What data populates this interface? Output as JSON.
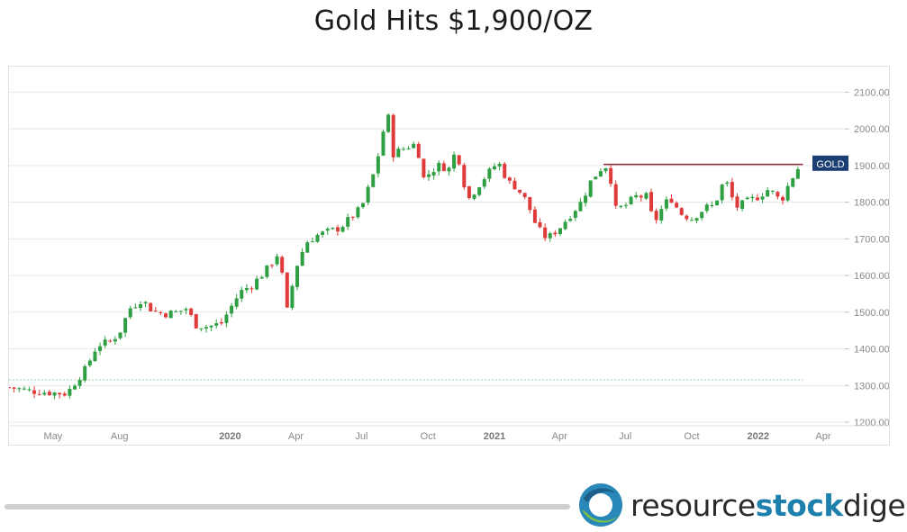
{
  "header": {
    "title": "Gold Hits $1,900/OZ"
  },
  "brand": {
    "name_part1": "resource",
    "name_part2": "stock",
    "name_part3": "digest"
  },
  "colors": {
    "up": "#2ea043",
    "down": "#e03b3b",
    "grid": "#e8e8e8",
    "resistance": "#8b2a3a",
    "label_bg": "#1b3f73"
  },
  "icons": {
    "logo": "circle-swoosh-logo"
  },
  "chart_data": {
    "type": "candlestick",
    "series_label": "GOLD",
    "last_value": 1905,
    "x_range": [
      "2019-03-01",
      "2022-05-01"
    ],
    "ylim": [
      1200,
      2150
    ],
    "yticks": [
      {
        "value": 1200,
        "label": "1200.00"
      },
      {
        "value": 1300,
        "label": "1300.00"
      },
      {
        "value": 1400,
        "label": "1400.00"
      },
      {
        "value": 1500,
        "label": "1500.00"
      },
      {
        "value": 1600,
        "label": "1600.00"
      },
      {
        "value": 1700,
        "label": "1700.00"
      },
      {
        "value": 1800,
        "label": "1800.00"
      },
      {
        "value": 1900,
        "label": "1900.00"
      },
      {
        "value": 2000,
        "label": "2000.00"
      },
      {
        "value": 2100,
        "label": "2100.00"
      }
    ],
    "xticks": [
      {
        "date": "2019-05-01",
        "label": "May",
        "bold": false
      },
      {
        "date": "2019-08-01",
        "label": "Aug",
        "bold": false
      },
      {
        "date": "2020-01-01",
        "label": "2020",
        "bold": true
      },
      {
        "date": "2020-04-01",
        "label": "Apr",
        "bold": false
      },
      {
        "date": "2020-07-01",
        "label": "Jul",
        "bold": false
      },
      {
        "date": "2020-10-01",
        "label": "Oct",
        "bold": false
      },
      {
        "date": "2021-01-01",
        "label": "2021",
        "bold": true
      },
      {
        "date": "2021-04-01",
        "label": "Apr",
        "bold": false
      },
      {
        "date": "2021-07-01",
        "label": "Jul",
        "bold": false
      },
      {
        "date": "2021-10-01",
        "label": "Oct",
        "bold": false
      },
      {
        "date": "2022-01-01",
        "label": "2022",
        "bold": true
      },
      {
        "date": "2022-04-01",
        "label": "Apr",
        "bold": false
      }
    ],
    "resistance_line": {
      "value": 1903,
      "start": "2021-06-01",
      "end": "2022-03-04"
    },
    "baseline_line": {
      "value": 1315,
      "start": "2019-03-01",
      "end": "2022-03-04"
    },
    "close_path": [
      [
        "2019-03-01",
        1295
      ],
      [
        "2019-04-01",
        1285
      ],
      [
        "2019-05-01",
        1280
      ],
      [
        "2019-05-20",
        1278
      ],
      [
        "2019-06-01",
        1310
      ],
      [
        "2019-06-15",
        1345
      ],
      [
        "2019-07-01",
        1410
      ],
      [
        "2019-07-20",
        1420
      ],
      [
        "2019-08-01",
        1445
      ],
      [
        "2019-08-15",
        1510
      ],
      [
        "2019-09-01",
        1535
      ],
      [
        "2019-09-15",
        1505
      ],
      [
        "2019-10-01",
        1495
      ],
      [
        "2019-10-20",
        1500
      ],
      [
        "2019-11-01",
        1510
      ],
      [
        "2019-11-15",
        1465
      ],
      [
        "2019-12-01",
        1460
      ],
      [
        "2019-12-20",
        1470
      ],
      [
        "2020-01-01",
        1510
      ],
      [
        "2020-01-15",
        1555
      ],
      [
        "2020-02-01",
        1575
      ],
      [
        "2020-02-20",
        1615
      ],
      [
        "2020-03-01",
        1640
      ],
      [
        "2020-03-10",
        1670
      ],
      [
        "2020-03-18",
        1485
      ],
      [
        "2020-04-01",
        1620
      ],
      [
        "2020-04-15",
        1690
      ],
      [
        "2020-05-01",
        1710
      ],
      [
        "2020-06-01",
        1730
      ],
      [
        "2020-07-01",
        1785
      ],
      [
        "2020-07-20",
        1890
      ],
      [
        "2020-08-06",
        2050
      ],
      [
        "2020-08-12",
        1930
      ],
      [
        "2020-09-01",
        1950
      ],
      [
        "2020-09-15",
        1960
      ],
      [
        "2020-09-25",
        1865
      ],
      [
        "2020-10-15",
        1900
      ],
      [
        "2020-11-01",
        1890
      ],
      [
        "2020-11-09",
        1950
      ],
      [
        "2020-11-25",
        1805
      ],
      [
        "2020-12-15",
        1860
      ],
      [
        "2021-01-06",
        1910
      ],
      [
        "2021-01-20",
        1855
      ],
      [
        "2021-02-01",
        1840
      ],
      [
        "2021-02-15",
        1800
      ],
      [
        "2021-03-01",
        1730
      ],
      [
        "2021-03-15",
        1700
      ],
      [
        "2021-04-01",
        1730
      ],
      [
        "2021-04-20",
        1775
      ],
      [
        "2021-05-01",
        1800
      ],
      [
        "2021-05-15",
        1860
      ],
      [
        "2021-06-01",
        1900
      ],
      [
        "2021-06-08",
        1895
      ],
      [
        "2021-06-18",
        1780
      ],
      [
        "2021-07-01",
        1790
      ],
      [
        "2021-07-15",
        1815
      ],
      [
        "2021-08-01",
        1815
      ],
      [
        "2021-08-09",
        1740
      ],
      [
        "2021-08-20",
        1780
      ],
      [
        "2021-09-01",
        1815
      ],
      [
        "2021-09-15",
        1770
      ],
      [
        "2021-10-01",
        1755
      ],
      [
        "2021-10-20",
        1785
      ],
      [
        "2021-11-01",
        1790
      ],
      [
        "2021-11-16",
        1865
      ],
      [
        "2021-12-01",
        1785
      ],
      [
        "2021-12-15",
        1800
      ],
      [
        "2022-01-01",
        1815
      ],
      [
        "2022-01-15",
        1835
      ],
      [
        "2022-01-25",
        1820
      ],
      [
        "2022-02-01",
        1800
      ],
      [
        "2022-02-15",
        1860
      ],
      [
        "2022-03-01",
        1905
      ]
    ]
  }
}
